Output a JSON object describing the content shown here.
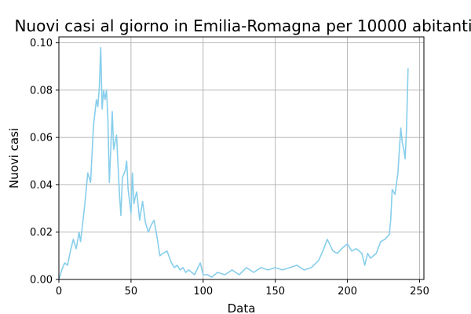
{
  "chart_data": {
    "type": "line",
    "title": "Nuovi casi al giorno in Emilia-Romagna per 10000 abitanti",
    "xlabel": "Data",
    "ylabel": "Nuovi casi",
    "xlim": [
      0,
      253
    ],
    "ylim": [
      0,
      0.1025
    ],
    "xticks": [
      {
        "value": 0,
        "label": "0"
      },
      {
        "value": 50,
        "label": "50"
      },
      {
        "value": 100,
        "label": "100"
      },
      {
        "value": 150,
        "label": "150"
      },
      {
        "value": 200,
        "label": "200"
      },
      {
        "value": 250,
        "label": "250"
      }
    ],
    "yticks": [
      {
        "value": 0,
        "label": "0.00"
      },
      {
        "value": 0.02,
        "label": "0.02"
      },
      {
        "value": 0.04,
        "label": "0.04"
      },
      {
        "value": 0.06,
        "label": "0.06"
      },
      {
        "value": 0.08,
        "label": "0.08"
      },
      {
        "value": 0.1,
        "label": "0.10"
      }
    ],
    "grid": true,
    "color": "#87ceeb",
    "series": [
      {
        "x": [
          0,
          2,
          4,
          6,
          8,
          10,
          12,
          14,
          15,
          16,
          18,
          20,
          22,
          24,
          26,
          27,
          28,
          29,
          30,
          31,
          32,
          33,
          34,
          35,
          36,
          37,
          38,
          40,
          41,
          42,
          43,
          44,
          46,
          47,
          48,
          50,
          51,
          52,
          53,
          54,
          56,
          58,
          60,
          62,
          64,
          66,
          68,
          70,
          72,
          75,
          78,
          80,
          82,
          84,
          86,
          88,
          90,
          94,
          98,
          100,
          103,
          106,
          110,
          115,
          120,
          125,
          130,
          135,
          140,
          145,
          150,
          155,
          160,
          165,
          170,
          175,
          180,
          183,
          186,
          190,
          193,
          196,
          200,
          203,
          206,
          210,
          212,
          214,
          216,
          220,
          223,
          226,
          229,
          230,
          231,
          233,
          235,
          236,
          237,
          238,
          239,
          240,
          241,
          242
        ],
        "y": [
          0,
          0.004,
          0.007,
          0.006,
          0.012,
          0.017,
          0.013,
          0.02,
          0.016,
          0.021,
          0.032,
          0.045,
          0.041,
          0.065,
          0.076,
          0.073,
          0.081,
          0.098,
          0.072,
          0.08,
          0.076,
          0.08,
          0.067,
          0.041,
          0.056,
          0.071,
          0.055,
          0.061,
          0.048,
          0.036,
          0.027,
          0.043,
          0.046,
          0.05,
          0.038,
          0.028,
          0.045,
          0.032,
          0.035,
          0.037,
          0.025,
          0.033,
          0.024,
          0.02,
          0.023,
          0.025,
          0.018,
          0.01,
          0.011,
          0.012,
          0.007,
          0.005,
          0.006,
          0.004,
          0.005,
          0.003,
          0.004,
          0.002,
          0.007,
          0.002,
          0.002,
          0.001,
          0.003,
          0.002,
          0.004,
          0.002,
          0.005,
          0.003,
          0.005,
          0.004,
          0.005,
          0.004,
          0.005,
          0.006,
          0.004,
          0.005,
          0.008,
          0.012,
          0.017,
          0.012,
          0.011,
          0.013,
          0.015,
          0.012,
          0.013,
          0.011,
          0.006,
          0.011,
          0.009,
          0.011,
          0.016,
          0.017,
          0.019,
          0.025,
          0.038,
          0.036,
          0.045,
          0.055,
          0.064,
          0.058,
          0.055,
          0.051,
          0.064,
          0.089
        ]
      }
    ]
  }
}
